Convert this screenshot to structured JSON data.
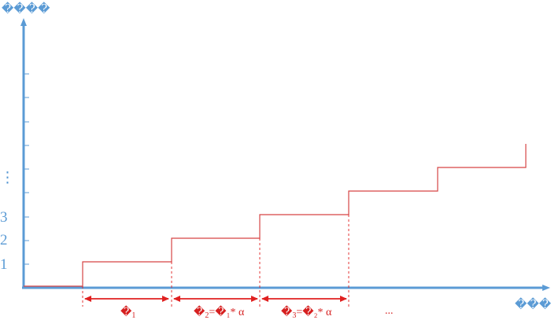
{
  "axes": {
    "y_title": "����",
    "x_title": "����"
  },
  "levels": {
    "labels": [
      "1",
      "2",
      "3",
      "⋮"
    ]
  },
  "intervals": {
    "labels": [
      {
        "main": "�",
        "sub": "1",
        "rest": ""
      },
      {
        "main": "�",
        "sub": "2",
        "rest": "=�₁* α"
      },
      {
        "main": "�",
        "sub": "3",
        "rest": "=�₂* α"
      }
    ],
    "more": "..."
  },
  "colors": {
    "axis": "#5b9bd5",
    "step_line": "#d64545",
    "arrow": "#e02020"
  },
  "steps": {
    "count": 6,
    "final_level": 6
  }
}
